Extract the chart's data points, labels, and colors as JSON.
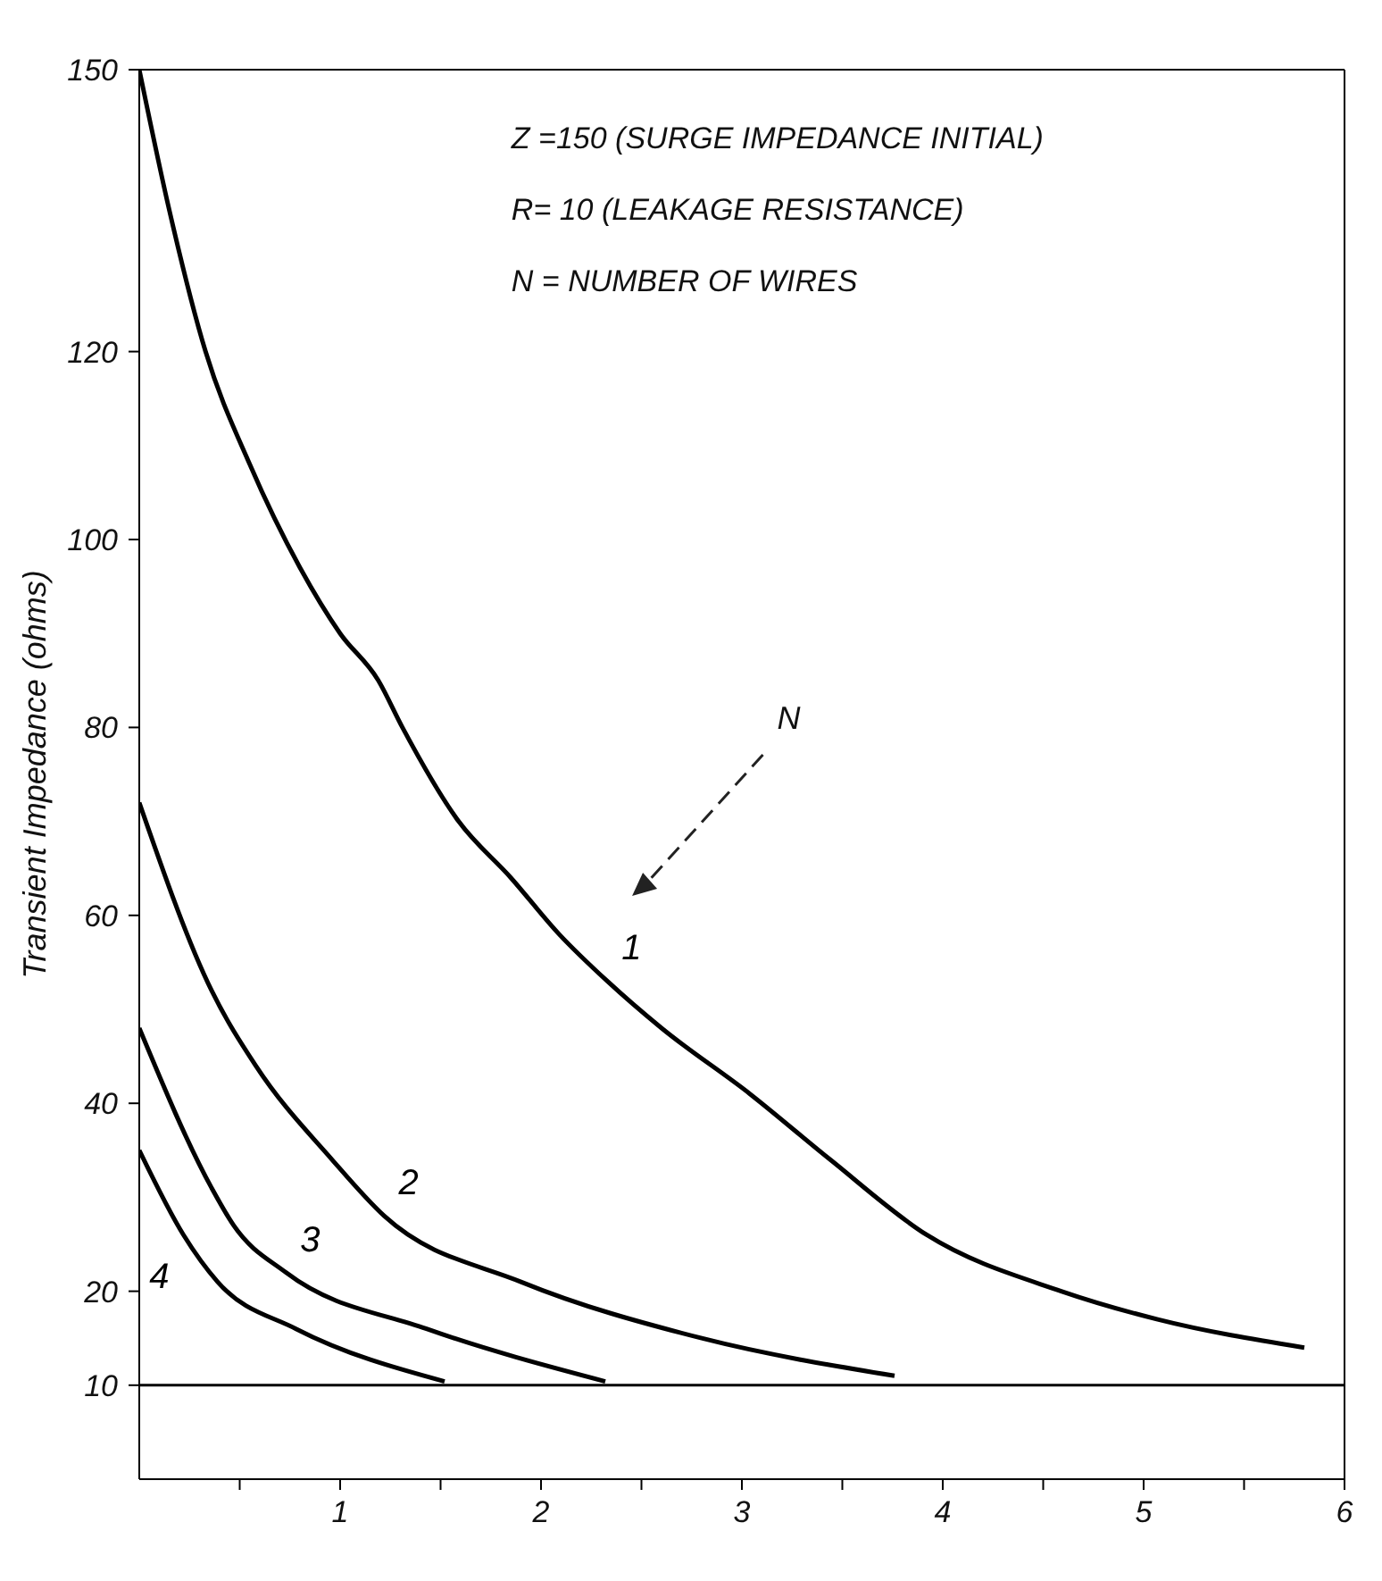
{
  "chart_data": {
    "type": "line",
    "ylabel": "Transient  Impedance (ohms)",
    "annotations": [
      "Z =150 (SURGE IMPEDANCE INITIAL)",
      "R= 10 (LEAKAGE RESISTANCE)",
      "N = NUMBER OF WIRES",
      "N"
    ],
    "xlim": [
      0,
      6
    ],
    "ylim": [
      0,
      150
    ],
    "xticks": [
      {
        "value": 0.5,
        "label": null
      },
      1,
      {
        "value": 1.5,
        "label": null
      },
      2,
      {
        "value": 2.5,
        "label": null
      },
      3,
      {
        "value": 3.5,
        "label": null
      },
      4,
      {
        "value": 4.5,
        "label": null
      },
      5,
      {
        "value": 5.5,
        "label": null
      },
      6
    ],
    "yticks": [
      10,
      20,
      40,
      60,
      80,
      100,
      120,
      150
    ],
    "grid": false,
    "legend": false,
    "marker": "none",
    "line_style": "solid",
    "ref_lines": [
      {
        "axis": "y",
        "value": 10,
        "color": "#000000"
      }
    ],
    "series": [
      {
        "name": "1",
        "color": "#000000",
        "x": [
          0,
          0.15,
          0.33,
          0.55,
          0.8,
          1.0,
          1.19,
          1.31,
          1.59,
          1.85,
          2.09,
          2.33,
          2.6,
          3.04,
          3.44,
          3.92,
          4.59,
          5.07,
          5.8
        ],
        "values": [
          150,
          135,
          120,
          108,
          97,
          90,
          85,
          80,
          70,
          64,
          58,
          53,
          48,
          41,
          34,
          26,
          20,
          17,
          14
        ]
      },
      {
        "name": "2",
        "color": "#000000",
        "x": [
          0,
          0.36,
          0.58,
          0.96,
          1.22,
          1.9,
          2.8,
          3.76
        ],
        "values": [
          72,
          52,
          44,
          34,
          28,
          21,
          15,
          11
        ]
      },
      {
        "name": "3",
        "color": "#000000",
        "x": [
          0,
          0.36,
          0.47,
          0.73,
          1.43,
          2.32
        ],
        "values": [
          48,
          31,
          27,
          22,
          16,
          10.4
        ]
      },
      {
        "name": "4",
        "color": "#000000",
        "x": [
          0,
          0.22,
          0.39,
          0.78,
          1.52
        ],
        "values": [
          35,
          26,
          21,
          16,
          10.4
        ]
      }
    ]
  }
}
